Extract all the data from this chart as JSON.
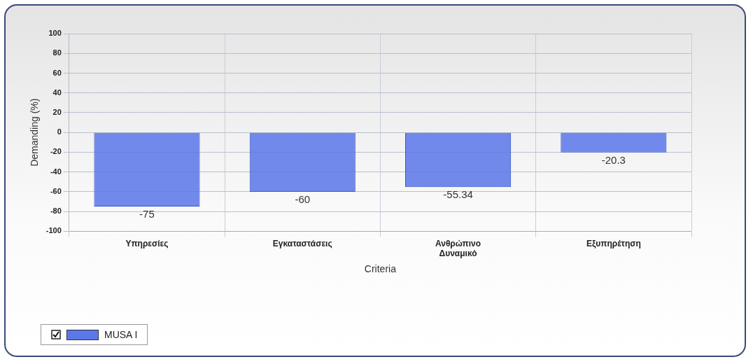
{
  "chart_data": {
    "type": "bar",
    "xlabel": "Criteria",
    "ylabel": "Demanding (%)",
    "categories": [
      "Υπηρεσίες",
      "Εγκαταστάσεις",
      "Ανθρώπινο Δυναμικό",
      "Εξυπηρέτηση"
    ],
    "series": [
      {
        "name": "MUSA I",
        "color": "#5b78e8",
        "values": [
          -75,
          -60,
          -55.34,
          -20.3
        ]
      }
    ],
    "ylim": [
      -100,
      100
    ],
    "yticks": [
      -100,
      -80,
      -60,
      -40,
      -20,
      0,
      20,
      40,
      60,
      80,
      100
    ],
    "grid": true,
    "legend": "bottom left",
    "data_labels": true
  }
}
